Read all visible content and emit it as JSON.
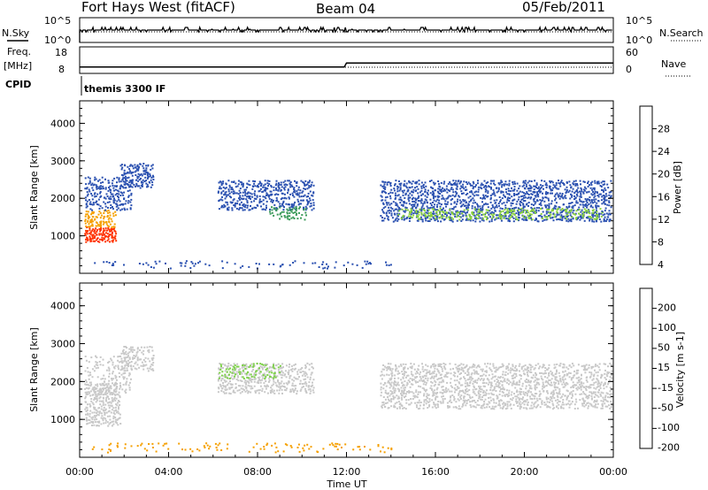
{
  "header": {
    "station": "Fort Hays West (fitACF)",
    "beam": "Beam 04",
    "date": "05/Feb/2011"
  },
  "summary_panel": {
    "nsky_label": "N.Sky",
    "nsky_ticks": [
      "10^5",
      "10^0"
    ],
    "nsearch_label": "N.Search",
    "nsearch_ticks": [
      "10^5",
      "10^0"
    ],
    "freq_label": "Freq.",
    "freq_unit": "[MHz]",
    "freq_ticks": [
      "18",
      "8"
    ],
    "nave_label": "Nave",
    "nave_ticks": [
      "60",
      "0"
    ],
    "cpid_label": "CPID",
    "cpid_value": "themis 3300 IF",
    "freq_values_mhz": [
      {
        "time_h": 0.0,
        "value": 10.4
      },
      {
        "time_h": 11.9,
        "value": 10.4
      },
      {
        "time_h": 12.0,
        "value": 11.9
      },
      {
        "time_h": 24.0,
        "value": 11.9
      }
    ]
  },
  "chart_data": [
    {
      "type": "heatmap",
      "name": "power-panel",
      "ylabel": "Slant Range [km]",
      "ylim": [
        0,
        4600
      ],
      "yticks": [
        "1000",
        "2000",
        "3000",
        "4000"
      ],
      "ytick_values": [
        1000,
        2000,
        3000,
        4000
      ],
      "xlim": [
        0,
        24
      ],
      "colorbar_label": "Power [dB]",
      "colorbar_ticks": [
        "28",
        "24",
        "20",
        "16",
        "12",
        "8",
        "4"
      ],
      "colorbar_colors": [
        "#ff0000",
        "#ff7800",
        "#f5c800",
        "#8ad23c",
        "#3c9b5a",
        "#1c3c9c",
        "#0a0aff"
      ],
      "scatter_regions": [
        {
          "t0": 0.2,
          "t1": 1.6,
          "r0": 850,
          "r1": 1250,
          "color": "#ff3200",
          "density": 0.9
        },
        {
          "t0": 0.2,
          "t1": 1.6,
          "r0": 1250,
          "r1": 1700,
          "color": "#f5a000",
          "density": 0.6
        },
        {
          "t0": 0.2,
          "t1": 2.3,
          "r0": 1700,
          "r1": 2600,
          "color": "#2a50b0",
          "density": 0.5
        },
        {
          "t0": 1.8,
          "t1": 3.3,
          "r0": 2300,
          "r1": 2950,
          "color": "#2a50b0",
          "density": 0.6
        },
        {
          "t0": 6.2,
          "t1": 10.5,
          "r0": 1700,
          "r1": 2500,
          "color": "#2a50b0",
          "density": 0.55
        },
        {
          "t0": 8.5,
          "t1": 10.2,
          "r0": 1450,
          "r1": 1800,
          "color": "#3c9b5a",
          "density": 0.4
        },
        {
          "t0": 13.5,
          "t1": 23.9,
          "r0": 1400,
          "r1": 2500,
          "color": "#2a50b0",
          "density": 0.55
        },
        {
          "t0": 14.2,
          "t1": 23.5,
          "r0": 1450,
          "r1": 1750,
          "color": "#8ad23c",
          "density": 0.35
        },
        {
          "t0": 0.5,
          "t1": 14.0,
          "r0": 150,
          "r1": 350,
          "color": "#2a50b0",
          "density": 0.12
        }
      ]
    },
    {
      "type": "heatmap",
      "name": "velocity-panel",
      "ylabel": "Slant Range [km]",
      "ylim": [
        0,
        4600
      ],
      "yticks": [
        "1000",
        "2000",
        "3000",
        "4000"
      ],
      "ytick_values": [
        1000,
        2000,
        3000,
        4000
      ],
      "xlim": [
        0,
        24
      ],
      "xlabel": "Time UT",
      "xticks": [
        "00:00",
        "04:00",
        "08:00",
        "12:00",
        "16:00",
        "20:00",
        "00:00"
      ],
      "xtick_values": [
        0,
        4,
        8,
        12,
        16,
        20,
        24
      ],
      "colorbar_label": "Velocity [m s-1]",
      "colorbar_ticks": [
        "200",
        "100",
        "50",
        "15",
        "-15",
        "-50",
        "-100",
        "-200"
      ],
      "colorbar_colors": [
        "#1a3c9a",
        "#3c8c50",
        "#3cc83c",
        "#c8c8c8",
        "#e6b400",
        "#ff8c00",
        "#ff3c00",
        "#ff0000"
      ],
      "scatter_regions": [
        {
          "t0": 0.2,
          "t1": 1.8,
          "r0": 850,
          "r1": 2000,
          "color": "#c8c8c8",
          "density": 0.7
        },
        {
          "t0": 0.2,
          "t1": 2.3,
          "r0": 1700,
          "r1": 2700,
          "color": "#c8c8c8",
          "density": 0.35
        },
        {
          "t0": 1.8,
          "t1": 3.3,
          "r0": 2300,
          "r1": 2950,
          "color": "#c8c8c8",
          "density": 0.5
        },
        {
          "t0": 6.2,
          "t1": 10.5,
          "r0": 1700,
          "r1": 2500,
          "color": "#c8c8c8",
          "density": 0.5
        },
        {
          "t0": 6.2,
          "t1": 9.0,
          "r0": 2100,
          "r1": 2500,
          "color": "#7ed24a",
          "density": 0.3
        },
        {
          "t0": 13.5,
          "t1": 23.9,
          "r0": 1300,
          "r1": 2500,
          "color": "#c8c8c8",
          "density": 0.55
        },
        {
          "t0": 0.5,
          "t1": 14.0,
          "r0": 150,
          "r1": 400,
          "color": "#f5a000",
          "density": 0.12
        }
      ]
    }
  ]
}
